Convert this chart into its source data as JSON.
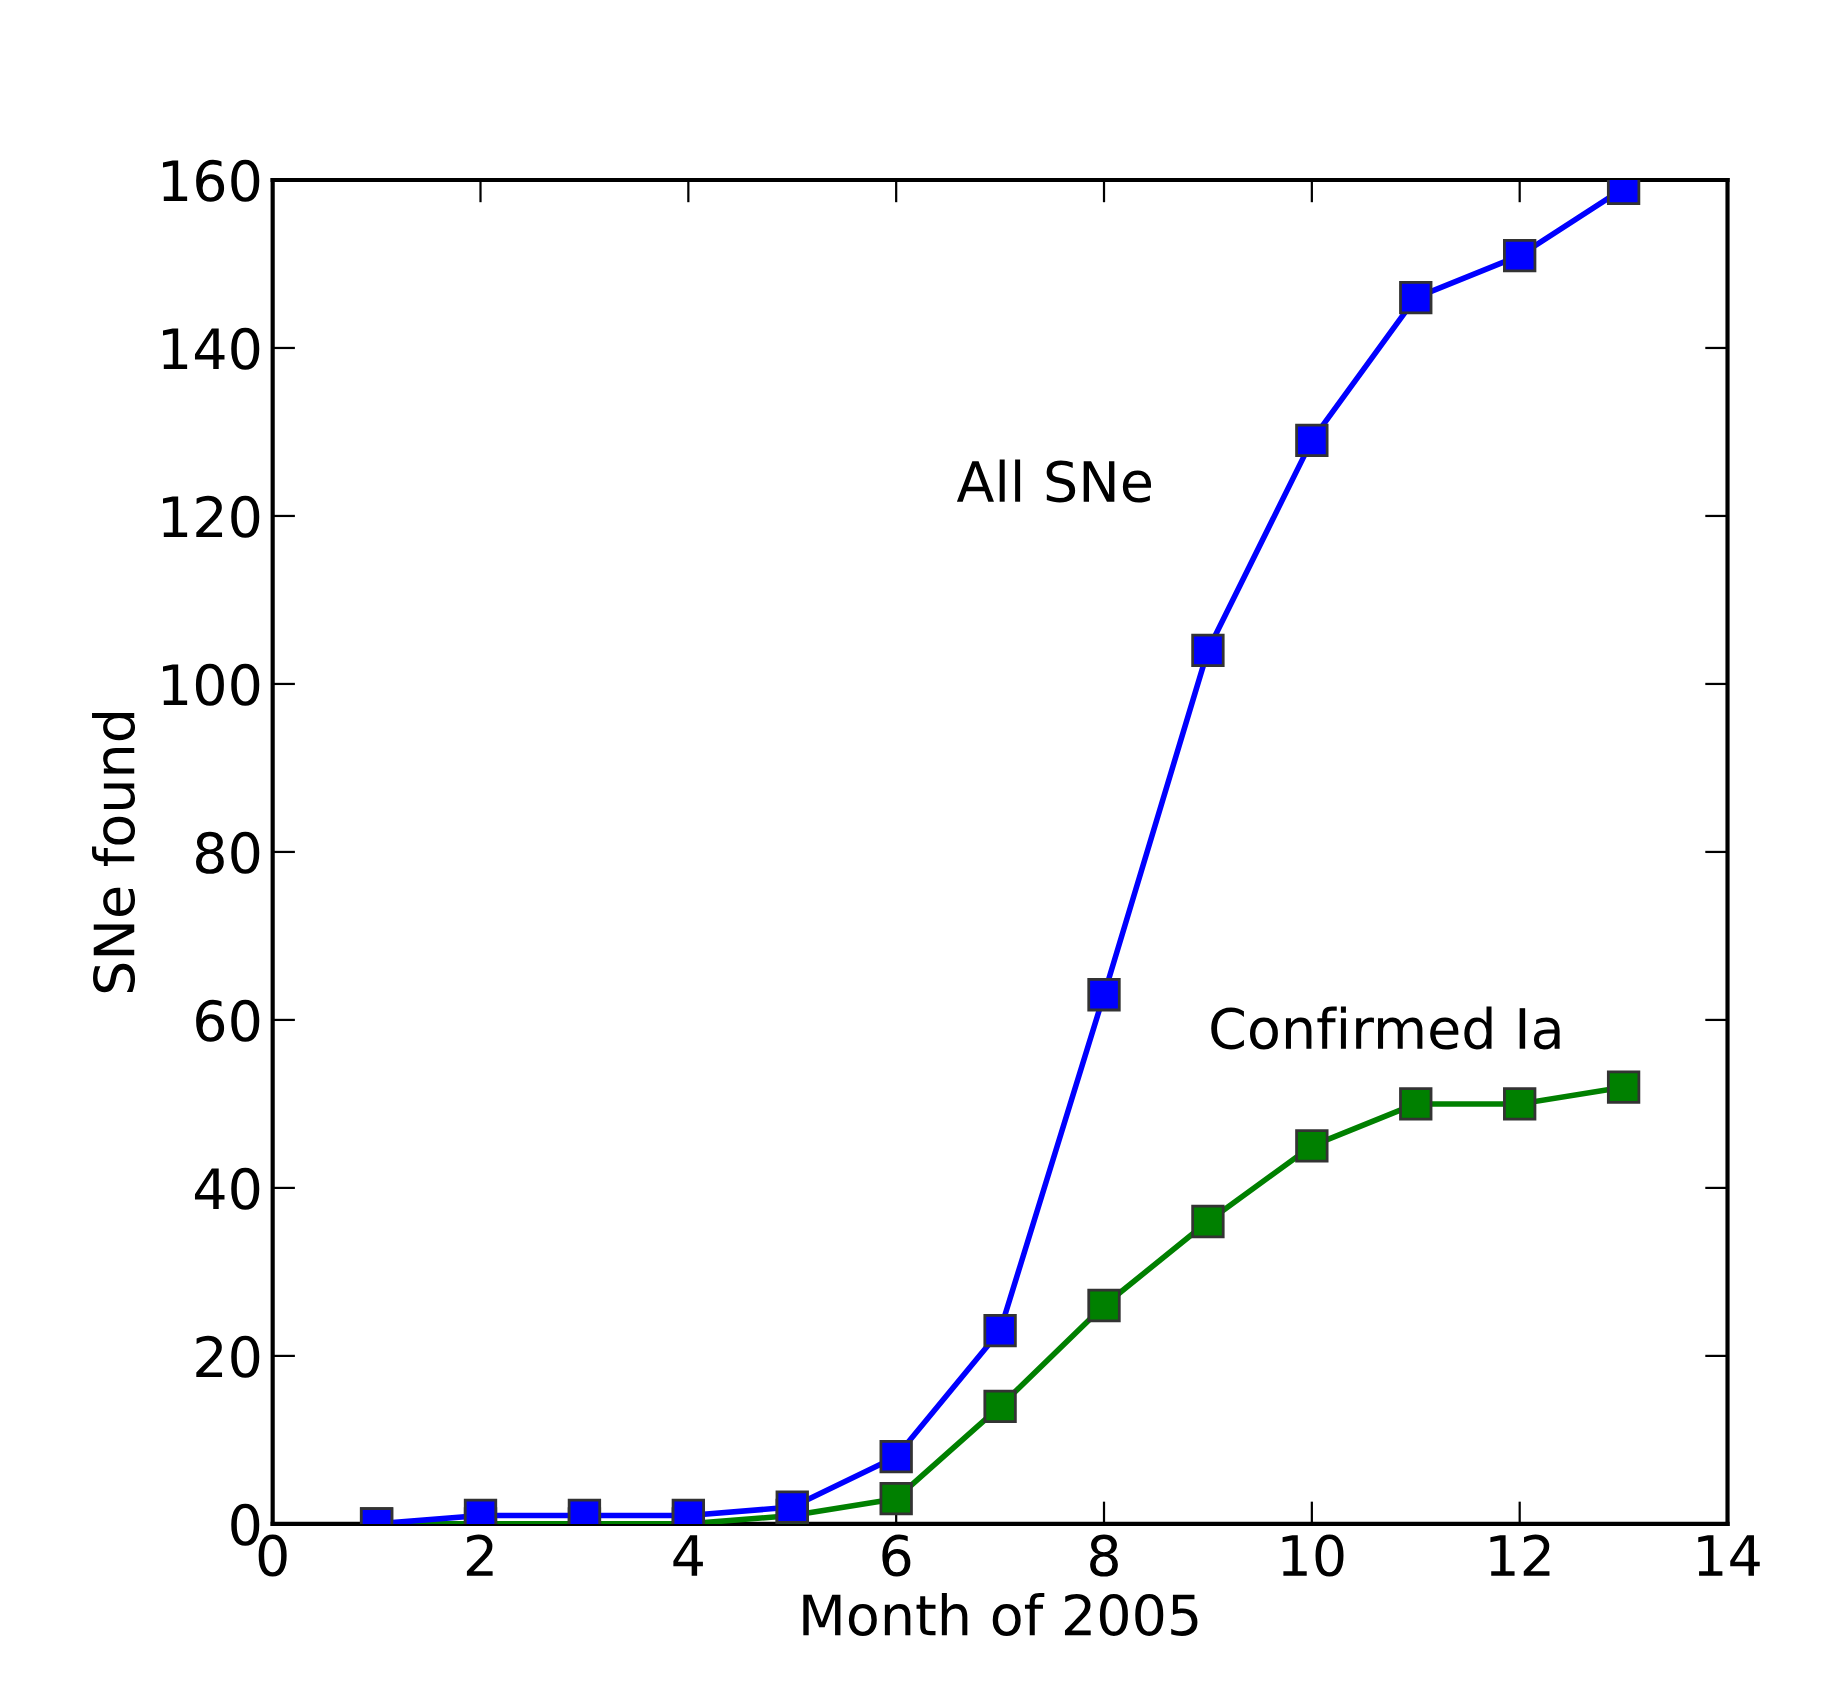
{
  "chart_data": {
    "type": "line",
    "xlabel": "Month of 2005",
    "ylabel": "SNe found",
    "x": [
      1,
      2,
      3,
      4,
      5,
      6,
      7,
      8,
      9,
      10,
      11,
      12,
      13
    ],
    "series": [
      {
        "name": "All SNe",
        "color": "#0000ff",
        "values": [
          0,
          1,
          1,
          1,
          2,
          8,
          23,
          63,
          104,
          129,
          146,
          151,
          159
        ]
      },
      {
        "name": "Confirmed Ia",
        "color": "#008000",
        "values": [
          0,
          0,
          0,
          0,
          1,
          3,
          14,
          26,
          36,
          45,
          50,
          50,
          52
        ]
      }
    ],
    "xlim": [
      0,
      14
    ],
    "xticks": [
      0,
      2,
      4,
      6,
      8,
      10,
      12,
      14
    ],
    "ylim": [
      0,
      160
    ],
    "yticks": [
      0,
      20,
      40,
      60,
      80,
      100,
      120,
      140,
      160
    ],
    "marker": "square",
    "line_style": "solid",
    "grid": false,
    "legend": false
  }
}
